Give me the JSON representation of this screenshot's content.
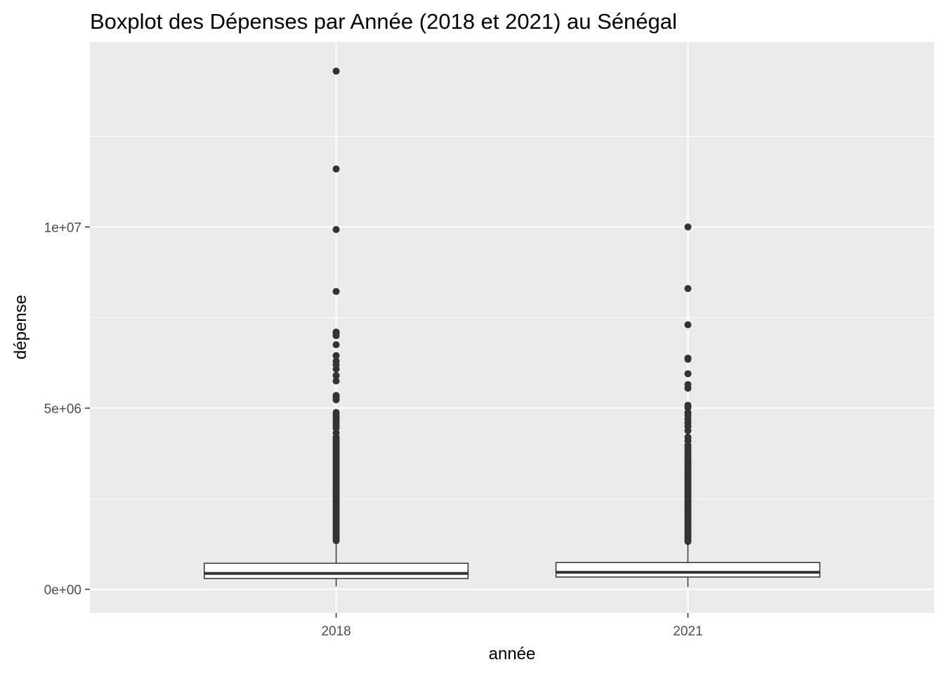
{
  "chart_data": {
    "type": "boxplot",
    "title": "Boxplot des Dépenses par Année (2018 et 2021) au Sénégal",
    "xlabel": "année",
    "ylabel": "dépense",
    "categories": [
      "2018",
      "2021"
    ],
    "ylim": [
      -650000,
      15100000
    ],
    "y_ticks": [
      {
        "value": 0,
        "label": "0e+00"
      },
      {
        "value": 5000000,
        "label": "5e+06"
      },
      {
        "value": 10000000,
        "label": "1e+07"
      }
    ],
    "y_minor_ticks": [
      2500000,
      7500000,
      12500000
    ],
    "grid": true,
    "boxes": [
      {
        "category": "2018",
        "whisker_low": 80000,
        "q1": 300000,
        "median": 440000,
        "q3": 720000,
        "whisker_high": 1300000,
        "outliers_dense_range": [
          1300000,
          4200000
        ],
        "outliers": [
          14300000,
          11600000,
          9930000,
          8220000,
          7100000,
          7050000,
          7000000,
          6750000,
          6450000,
          6300000,
          6200000,
          6080000,
          5900000,
          5750000,
          5350000,
          5300000,
          5230000,
          4880000,
          4820000,
          4750000,
          4680000,
          4600000,
          4520000,
          4450000,
          4320000
        ]
      },
      {
        "category": "2021",
        "whisker_low": 60000,
        "q1": 340000,
        "median": 470000,
        "q3": 740000,
        "whisker_high": 1300000,
        "outliers_dense_range": [
          1300000,
          3550000
        ],
        "outliers": [
          10000000,
          8300000,
          7300000,
          6380000,
          6350000,
          5950000,
          5650000,
          5550000,
          5080000,
          5020000,
          4880000,
          4800000,
          4700000,
          4600000,
          4500000,
          4380000,
          4200000,
          4100000,
          3980000,
          3900000,
          3820000,
          3750000,
          3680000,
          3600000
        ]
      }
    ]
  }
}
